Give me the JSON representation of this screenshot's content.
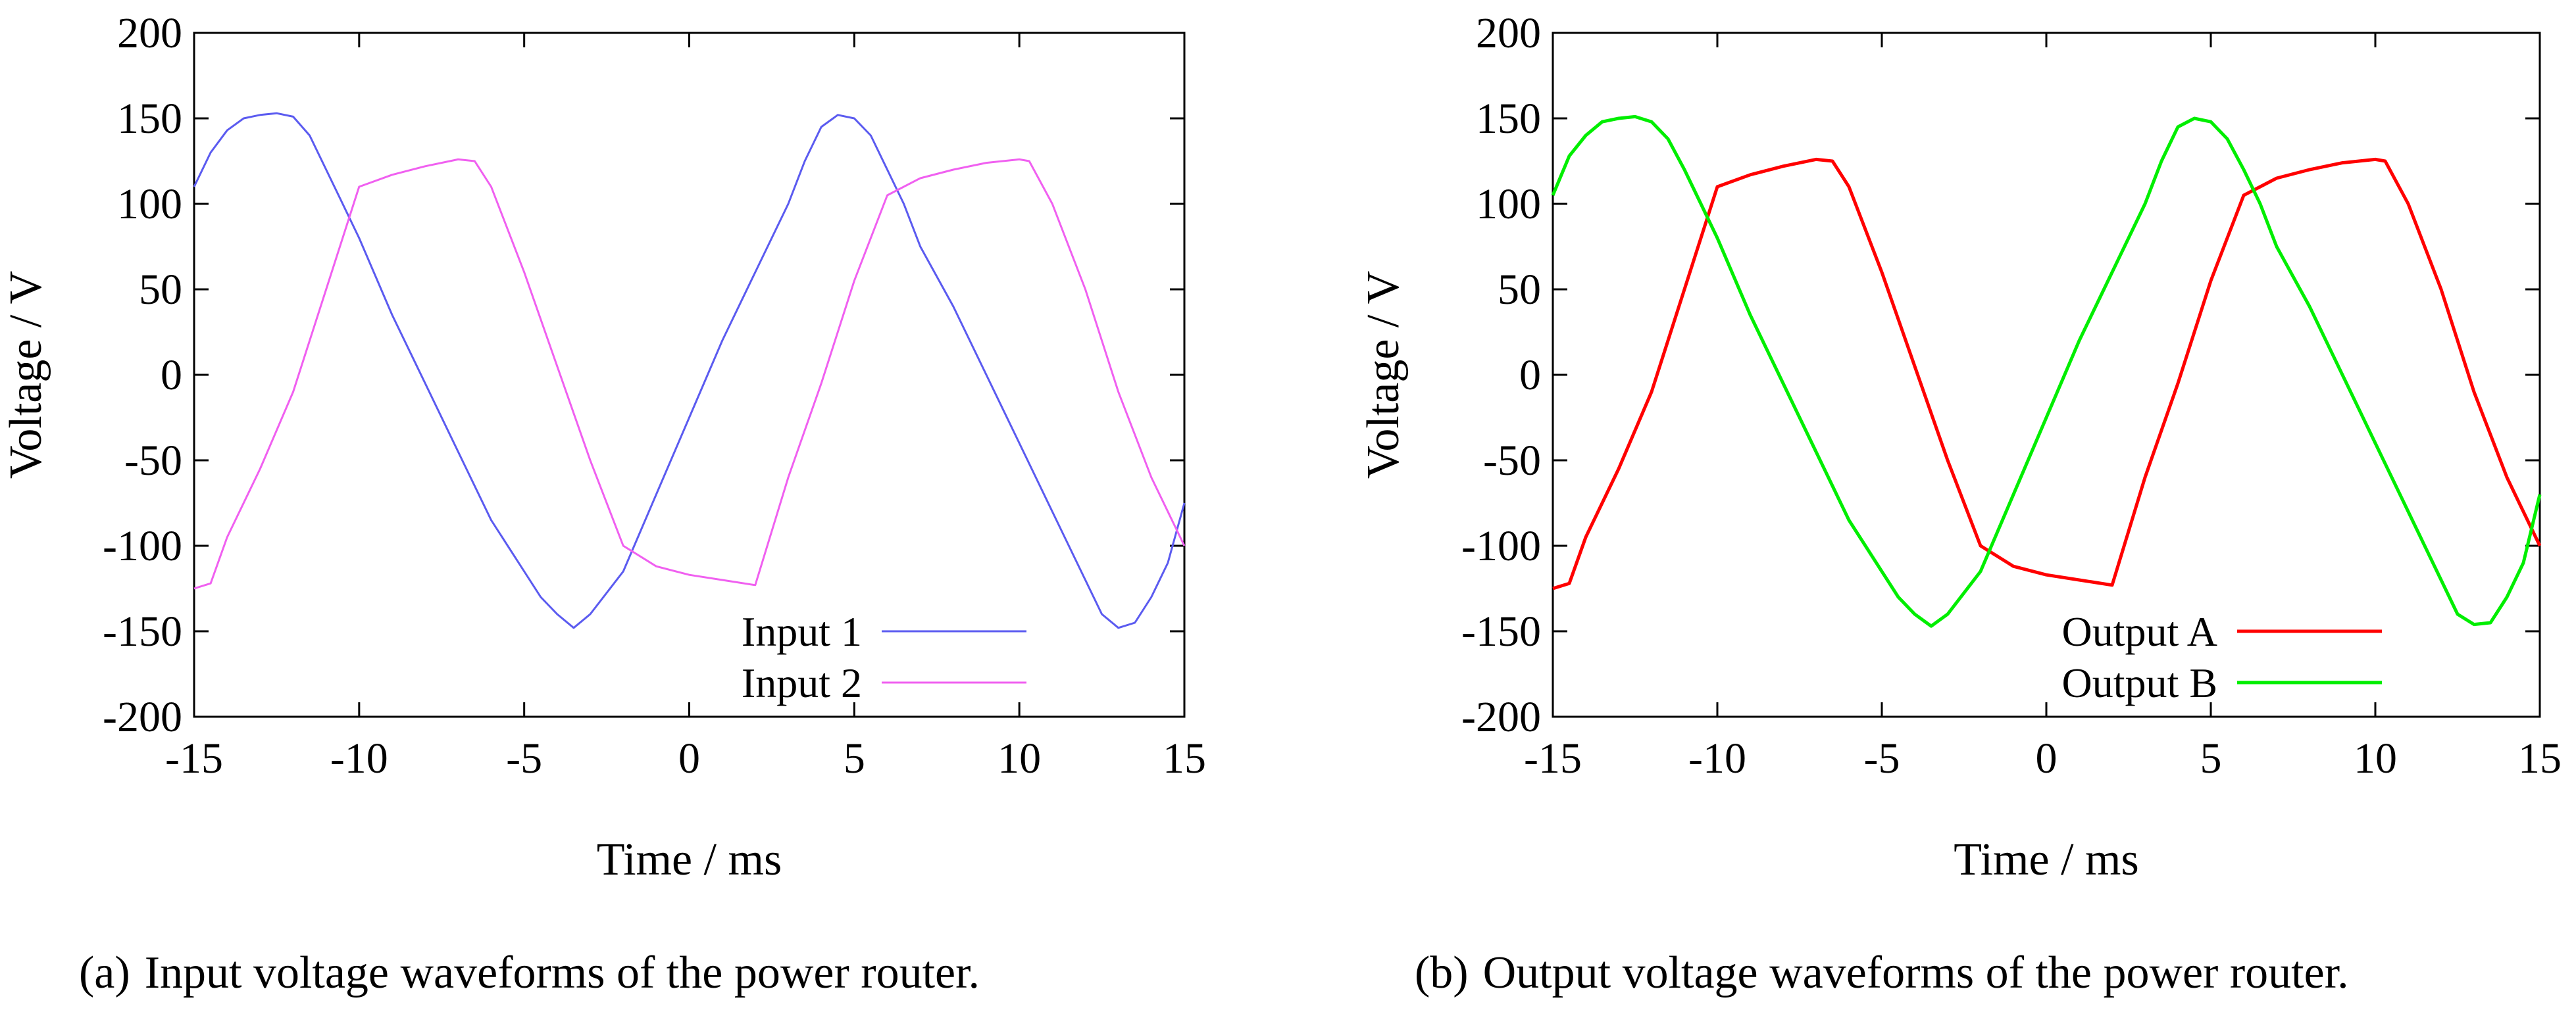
{
  "chart_data": [
    {
      "type": "line",
      "panel": "(a)",
      "caption": "Input voltage waveforms of the power router.",
      "xlabel": "Time / ms",
      "ylabel": "Voltage / V",
      "xlim": [
        -15,
        15
      ],
      "ylim": [
        -200,
        200
      ],
      "xticks": [
        -15,
        -10,
        -5,
        0,
        5,
        10,
        15
      ],
      "yticks": [
        -200,
        -150,
        -100,
        -50,
        0,
        50,
        100,
        150,
        200
      ],
      "grid": false,
      "legend_position": "bottom-right",
      "series": [
        {
          "name": "Input 1",
          "color": "#5b5bf0",
          "x": [
            -15,
            -14.5,
            -14,
            -13.5,
            -13,
            -12.5,
            -12,
            -11.5,
            -11,
            -10.5,
            -10,
            -9,
            -8,
            -7,
            -6,
            -5,
            -4.5,
            -4,
            -3.5,
            -3,
            -2,
            -1,
            0,
            1,
            2,
            3,
            3.5,
            4,
            4.5,
            5,
            5.5,
            6,
            6.5,
            7,
            8,
            9,
            10,
            11,
            12,
            12.5,
            13,
            13.5,
            14,
            14.5,
            15
          ],
          "y": [
            110,
            130,
            143,
            150,
            152,
            153,
            151,
            140,
            120,
            100,
            80,
            35,
            -5,
            -45,
            -85,
            -115,
            -130,
            -140,
            -148,
            -140,
            -115,
            -70,
            -25,
            20,
            60,
            100,
            125,
            145,
            152,
            150,
            140,
            120,
            100,
            75,
            40,
            0,
            -40,
            -80,
            -120,
            -140,
            -148,
            -145,
            -130,
            -110,
            -75
          ]
        },
        {
          "name": "Input 2",
          "color": "#f060f0",
          "x": [
            -15,
            -14.5,
            -14,
            -13,
            -12,
            -11,
            -10,
            -9,
            -8,
            -7,
            -6.5,
            -6,
            -5,
            -4,
            -3,
            -2,
            -1,
            0,
            1,
            2,
            3,
            4,
            5,
            6,
            7,
            8,
            9,
            10,
            10.3,
            11,
            12,
            13,
            14,
            15
          ],
          "y": [
            -125,
            -122,
            -95,
            -55,
            -10,
            50,
            110,
            117,
            122,
            126,
            125,
            110,
            60,
            5,
            -50,
            -100,
            -112,
            -117,
            -120,
            -123,
            -60,
            -5,
            55,
            105,
            115,
            120,
            124,
            126,
            125,
            100,
            50,
            -10,
            -60,
            -100
          ]
        }
      ]
    },
    {
      "type": "line",
      "panel": "(b)",
      "caption": "Output voltage waveforms of the power router.",
      "xlabel": "Time / ms",
      "ylabel": "Voltage / V",
      "xlim": [
        -15,
        15
      ],
      "ylim": [
        -200,
        200
      ],
      "xticks": [
        -15,
        -10,
        -5,
        0,
        5,
        10,
        15
      ],
      "yticks": [
        -200,
        -150,
        -100,
        -50,
        0,
        50,
        100,
        150,
        200
      ],
      "grid": false,
      "legend_position": "bottom-right",
      "series": [
        {
          "name": "Output A",
          "color": "#ff0000",
          "x": [
            -15,
            -14.5,
            -14,
            -13,
            -12,
            -11,
            -10,
            -9,
            -8,
            -7,
            -6.5,
            -6,
            -5,
            -4,
            -3,
            -2,
            -1,
            0,
            1,
            2,
            3,
            4,
            5,
            6,
            7,
            8,
            9,
            10,
            10.3,
            11,
            12,
            13,
            14,
            15
          ],
          "y": [
            -125,
            -122,
            -95,
            -55,
            -10,
            50,
            110,
            117,
            122,
            126,
            125,
            110,
            60,
            5,
            -50,
            -100,
            -112,
            -117,
            -120,
            -123,
            -60,
            -5,
            55,
            105,
            115,
            120,
            124,
            126,
            125,
            100,
            50,
            -10,
            -60,
            -100
          ]
        },
        {
          "name": "Output B",
          "color": "#00ee00",
          "x": [
            -15,
            -14.5,
            -14,
            -13.5,
            -13,
            -12.5,
            -12,
            -11.5,
            -11,
            -10.5,
            -10,
            -9,
            -8,
            -7,
            -6,
            -5,
            -4.5,
            -4,
            -3.5,
            -3,
            -2,
            -1,
            0,
            1,
            2,
            3,
            3.5,
            4,
            4.5,
            5,
            5.5,
            6,
            6.5,
            7,
            8,
            9,
            10,
            11,
            12,
            12.5,
            13,
            13.5,
            14,
            14.5,
            15
          ],
          "y": [
            105,
            128,
            140,
            148,
            150,
            151,
            148,
            138,
            120,
            100,
            80,
            35,
            -5,
            -45,
            -85,
            -115,
            -130,
            -140,
            -147,
            -140,
            -115,
            -70,
            -25,
            20,
            60,
            100,
            125,
            145,
            150,
            148,
            138,
            120,
            100,
            75,
            40,
            0,
            -40,
            -80,
            -120,
            -140,
            -146,
            -145,
            -130,
            -110,
            -70
          ]
        }
      ]
    }
  ]
}
